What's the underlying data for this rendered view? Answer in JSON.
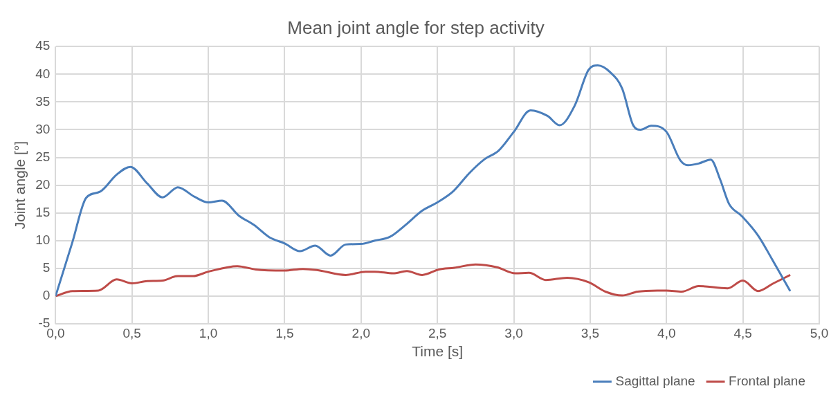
{
  "chart_data": {
    "type": "line",
    "title": "Mean joint angle for step activity",
    "xlabel": "Time [s]",
    "ylabel": "Joint angle [°]",
    "xlim": [
      0,
      5
    ],
    "xticks": [
      {
        "value": 0,
        "label": "0,0"
      },
      {
        "value": 0.5,
        "label": "0,5"
      },
      {
        "value": 1,
        "label": "1,0"
      },
      {
        "value": 1.5,
        "label": "1,5"
      },
      {
        "value": 2,
        "label": "2,0"
      },
      {
        "value": 2.5,
        "label": "2,5"
      },
      {
        "value": 3,
        "label": "3,0"
      },
      {
        "value": 3.5,
        "label": "3,5"
      },
      {
        "value": 4,
        "label": "4,0"
      },
      {
        "value": 4.5,
        "label": "4,5"
      },
      {
        "value": 5,
        "label": "5,0"
      }
    ],
    "ylim": [
      -5,
      45
    ],
    "yticks": [
      -5,
      0,
      5,
      10,
      15,
      20,
      25,
      30,
      35,
      40,
      45
    ],
    "grid": true,
    "legend": "bottom right",
    "series": [
      {
        "name": "Sagittal plane",
        "color": "#4a7ebb",
        "x": [
          0,
          0.11,
          0.2,
          0.29,
          0.4,
          0.49,
          0.6,
          0.7,
          0.8,
          0.91,
          1.0,
          1.09,
          1.2,
          1.3,
          1.4,
          1.5,
          1.6,
          1.7,
          1.8,
          1.9,
          2.0,
          2.09,
          2.19,
          2.29,
          2.4,
          2.5,
          2.6,
          2.71,
          2.81,
          2.9,
          3.0,
          3.11,
          3.22,
          3.3,
          3.4,
          3.49,
          3.55,
          3.63,
          3.71,
          3.78,
          3.83,
          3.9,
          4.0,
          4.09,
          4.14,
          4.21,
          4.29,
          4.35,
          4.41,
          4.49,
          4.6,
          4.69,
          4.81
        ],
        "values": [
          0,
          9.7,
          17.7,
          18.8,
          21.9,
          23.3,
          20.3,
          17.8,
          19.6,
          17.9,
          16.9,
          17.2,
          14.5,
          12.8,
          10.6,
          9.5,
          8.1,
          9.1,
          7.3,
          9.3,
          9.4,
          10.0,
          10.7,
          12.8,
          15.4,
          16.9,
          18.8,
          22.2,
          24.7,
          26.2,
          29.6,
          33.5,
          32.5,
          30.8,
          34.4,
          40.8,
          41.6,
          40.4,
          37.4,
          30.9,
          30.0,
          30.7,
          29.6,
          24.5,
          23.6,
          23.9,
          24.6,
          21.1,
          16.6,
          14.5,
          10.9,
          6.7,
          0.9
        ]
      },
      {
        "name": "Frontal plane",
        "color": "#be4b48",
        "x": [
          0,
          0.11,
          0.28,
          0.4,
          0.5,
          0.6,
          0.7,
          0.8,
          0.9,
          1.0,
          1.19,
          1.31,
          1.5,
          1.62,
          1.71,
          1.9,
          2.03,
          2.09,
          2.21,
          2.3,
          2.4,
          2.51,
          2.61,
          2.75,
          2.89,
          3.01,
          3.1,
          3.21,
          3.35,
          3.49,
          3.6,
          3.71,
          3.81,
          3.94,
          4.0,
          4.1,
          4.21,
          4.4,
          4.5,
          4.6,
          4.7,
          4.81
        ],
        "values": [
          0,
          0.9,
          1.0,
          3.0,
          2.3,
          2.7,
          2.8,
          3.6,
          3.6,
          4.4,
          5.4,
          4.8,
          4.6,
          4.9,
          4.7,
          3.8,
          4.4,
          4.4,
          4.1,
          4.5,
          3.8,
          4.8,
          5.1,
          5.7,
          5.2,
          4.1,
          4.2,
          2.9,
          3.3,
          2.5,
          0.8,
          0.1,
          0.8,
          1.0,
          1.0,
          0.8,
          1.8,
          1.4,
          2.8,
          0.9,
          2.3,
          3.8
        ]
      }
    ]
  }
}
